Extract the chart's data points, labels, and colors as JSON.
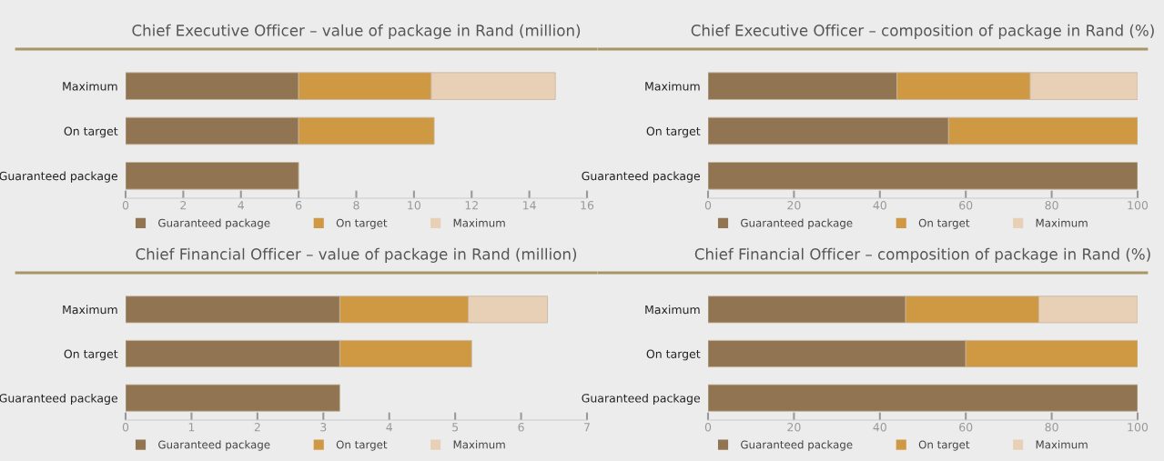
{
  "chart_data": [
    {
      "type": "bar",
      "orientation": "horizontal",
      "stacked": true,
      "title": "Chief Executive Officer – value of package in Rand (million)",
      "categories": [
        "Maximum",
        "On target",
        "Guaranteed package"
      ],
      "series": [
        {
          "name": "Guaranteed package",
          "color": "#917552",
          "values": [
            6.0,
            6.0,
            6.0
          ]
        },
        {
          "name": "On target",
          "color": "#cf9944",
          "values": [
            4.6,
            4.7,
            null
          ]
        },
        {
          "name": "Maximum",
          "color": "#e8d0b6",
          "values": [
            4.3,
            null,
            null
          ]
        }
      ],
      "xlim": [
        0,
        16
      ],
      "xticks": [
        0,
        2,
        4,
        6,
        8,
        10,
        12,
        14,
        16
      ],
      "legend": "bottom",
      "grid": false
    },
    {
      "type": "bar",
      "orientation": "horizontal",
      "stacked": true,
      "title": "Chief Executive Officer – composition of package in Rand (%)",
      "categories": [
        "Maximum",
        "On target",
        "Guaranteed package"
      ],
      "series": [
        {
          "name": "Guaranteed package",
          "color": "#917552",
          "values": [
            44,
            56,
            100
          ]
        },
        {
          "name": "On target",
          "color": "#cf9944",
          "values": [
            31,
            44,
            null
          ]
        },
        {
          "name": "Maximum",
          "color": "#e8d0b6",
          "values": [
            25,
            null,
            null
          ]
        }
      ],
      "xlim": [
        0,
        100
      ],
      "xticks": [
        0,
        20,
        40,
        60,
        80,
        100
      ],
      "legend": "bottom",
      "grid": false
    },
    {
      "type": "bar",
      "orientation": "horizontal",
      "stacked": true,
      "title": "Chief Financial Officer – value of package in Rand (million)",
      "categories": [
        "Maximum",
        "On target",
        "Guaranteed package"
      ],
      "series": [
        {
          "name": "Guaranteed package",
          "color": "#917552",
          "values": [
            3.25,
            3.25,
            3.25
          ]
        },
        {
          "name": "On target",
          "color": "#cf9944",
          "values": [
            1.95,
            2.0,
            null
          ]
        },
        {
          "name": "Maximum",
          "color": "#e8d0b6",
          "values": [
            1.2,
            null,
            null
          ]
        }
      ],
      "xlim": [
        0,
        7
      ],
      "xticks": [
        0,
        1,
        2,
        3,
        4,
        5,
        6,
        7
      ],
      "legend": "bottom",
      "grid": false
    },
    {
      "type": "bar",
      "orientation": "horizontal",
      "stacked": true,
      "title": "Chief Financial Officer – composition of package in Rand (%)",
      "categories": [
        "Maximum",
        "On target",
        "Guaranteed package"
      ],
      "series": [
        {
          "name": "Guaranteed package",
          "color": "#917552",
          "values": [
            46,
            60,
            100
          ]
        },
        {
          "name": "On target",
          "color": "#cf9944",
          "values": [
            31,
            40,
            null
          ]
        },
        {
          "name": "Maximum",
          "color": "#e8d0b6",
          "values": [
            23,
            null,
            null
          ]
        }
      ],
      "xlim": [
        0,
        100
      ],
      "xticks": [
        0,
        20,
        40,
        60,
        80,
        100
      ],
      "legend": "bottom",
      "grid": false
    }
  ]
}
